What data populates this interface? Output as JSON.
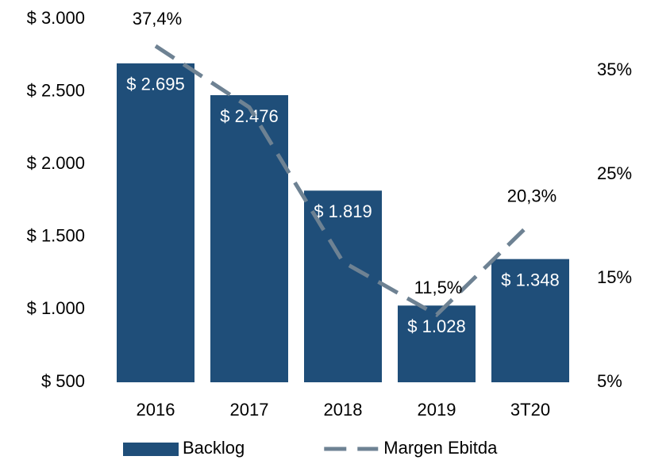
{
  "chart_data": {
    "type": "bar",
    "categories": [
      "2016",
      "2017",
      "2018",
      "2019",
      "3T20"
    ],
    "series": [
      {
        "name": "Backlog",
        "color": "#1f4e79",
        "values": [
          2695,
          2476,
          1819,
          1028,
          1348
        ],
        "value_labels": [
          "$ 2.695",
          "$ 2.476",
          "$ 1.819",
          "$ 1.028",
          "$ 1.348"
        ]
      },
      {
        "name": "Margen Ebitda",
        "type": "line",
        "axis": "y2",
        "color": "#6e8293",
        "dashed": true,
        "values": [
          37.4,
          31.5,
          16.6,
          11.5,
          20.3
        ],
        "value_labels": [
          "37,4%",
          null,
          null,
          "11,5%",
          "20,3%"
        ]
      }
    ],
    "ylim": [
      500,
      3000
    ],
    "yticks": [
      {
        "value": 500,
        "label": "$ 500"
      },
      {
        "value": 1000,
        "label": "$ 1.000"
      },
      {
        "value": 1500,
        "label": "$ 1.500"
      },
      {
        "value": 2000,
        "label": "$ 2.000"
      },
      {
        "value": 2500,
        "label": "$ 2.500"
      },
      {
        "value": 3000,
        "label": "$ 3.000"
      }
    ],
    "y2lim": [
      5,
      40
    ],
    "y2ticks": [
      {
        "value": 5,
        "label": "5%"
      },
      {
        "value": 15,
        "label": "15%"
      },
      {
        "value": 25,
        "label": "25%"
      },
      {
        "value": 35,
        "label": "35%"
      }
    ],
    "legend": "bottom"
  }
}
